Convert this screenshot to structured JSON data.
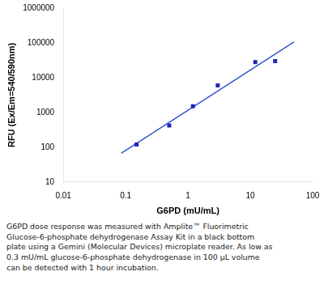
{
  "chart_data": {
    "type": "scatter",
    "xlabel": "G6PD (mU/mL)",
    "ylabel": "RFU (Ex/Em=540/590nm)",
    "log": true,
    "grid": false,
    "xlim": [
      0.01,
      100
    ],
    "xticks": [
      0.01,
      0.1,
      1,
      10,
      100
    ],
    "ylim": [
      10,
      1000000
    ],
    "yticks": [
      10,
      100,
      1000,
      10000,
      100000,
      1000000
    ],
    "series": [
      {
        "type": "line",
        "color": "#3355cc",
        "line_style": "solid",
        "x": [
          0.085,
          50
        ],
        "values": [
          66.85,
          106230
        ]
      },
      {
        "type": "scatter",
        "color": "#2222bb",
        "marker": "square",
        "x": [
          0.15,
          0.5,
          1.2,
          3.0,
          12.0,
          25.0
        ],
        "values": [
          120,
          420,
          1500,
          6000,
          28000,
          30000
        ]
      }
    ],
    "annotations": [
      "G6PD dose response was measured with Amplite™ Fluorimetric\nGlucose-6-phosphate dehydrogenase Assay Kit in a black bottom\nplate using a Gemini (Molecular Devices) microplate reader. As low as\n0.3 mU/mL glucose-6-phosphate dehydrogenase in 100 μL volume\ncan be detected with 1 hour incubation."
    ],
    "caption_color": "#222222"
  }
}
